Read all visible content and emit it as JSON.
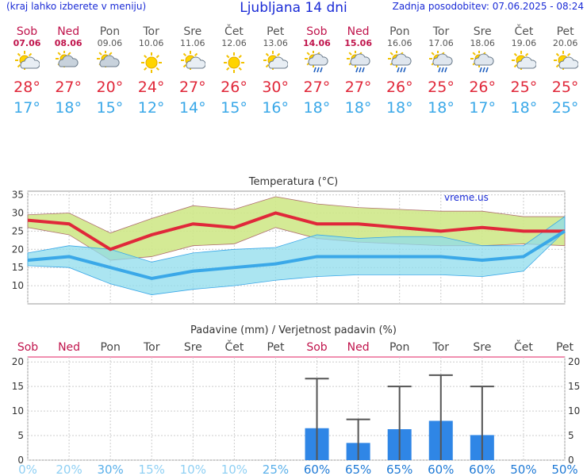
{
  "header": {
    "left_note": "(kraj lahko izberete v meniju)",
    "title": "Ljubljana 14 dni",
    "updated": "Zadnja posodobitev: 07.06.2025 - 08:24"
  },
  "days": [
    {
      "name": "Sob",
      "date": "07.06",
      "weekend": true,
      "icon": "sun-cloud-icon",
      "max": "28°",
      "min": "17°"
    },
    {
      "name": "Ned",
      "date": "08.06",
      "weekend": true,
      "icon": "cloudy-icon",
      "max": "27°",
      "min": "18°"
    },
    {
      "name": "Pon",
      "date": "09.06",
      "weekend": false,
      "icon": "cloudy-icon",
      "max": "20°",
      "min": "15°"
    },
    {
      "name": "Tor",
      "date": "10.06",
      "weekend": false,
      "icon": "sun-icon",
      "max": "24°",
      "min": "12°"
    },
    {
      "name": "Sre",
      "date": "11.06",
      "weekend": false,
      "icon": "sun-cloud-icon",
      "max": "27°",
      "min": "14°"
    },
    {
      "name": "Čet",
      "date": "12.06",
      "weekend": false,
      "icon": "sun-icon",
      "max": "26°",
      "min": "15°"
    },
    {
      "name": "Pet",
      "date": "13.06",
      "weekend": false,
      "icon": "sun-cloud-icon",
      "max": "30°",
      "min": "16°"
    },
    {
      "name": "Sob",
      "date": "14.06",
      "weekend": true,
      "icon": "sun-rain-icon",
      "max": "27°",
      "min": "18°"
    },
    {
      "name": "Ned",
      "date": "15.06",
      "weekend": true,
      "icon": "sun-rain-icon",
      "max": "27°",
      "min": "18°"
    },
    {
      "name": "Pon",
      "date": "16.06",
      "weekend": false,
      "icon": "sun-rain-icon",
      "max": "26°",
      "min": "18°"
    },
    {
      "name": "Tor",
      "date": "17.06",
      "weekend": false,
      "icon": "sun-rain-icon",
      "max": "25°",
      "min": "18°"
    },
    {
      "name": "Sre",
      "date": "18.06",
      "weekend": false,
      "icon": "sun-rain-icon",
      "max": "26°",
      "min": "17°"
    },
    {
      "name": "Čet",
      "date": "19.06",
      "weekend": false,
      "icon": "sun-cloud-icon",
      "max": "25°",
      "min": "18°"
    },
    {
      "name": "Pet",
      "date": "20.06",
      "weekend": false,
      "icon": "sun-cloud-icon",
      "max": "25°",
      "min": "25°"
    }
  ],
  "colors": {
    "max": "#e0283a",
    "min": "#3aa8e8",
    "max_band": "#cfe88a",
    "min_band": "#8fdcec",
    "precip": "#2f86e6",
    "weekend": "#c0144c"
  },
  "chart_data": [
    {
      "type": "line",
      "title": "Temperatura (°C)",
      "watermark": "vreme.us",
      "ylim": [
        5,
        36
      ],
      "yticks": [
        10,
        15,
        20,
        25,
        30,
        35
      ],
      "x": [
        "07.06",
        "08.06",
        "09.06",
        "10.06",
        "11.06",
        "12.06",
        "13.06",
        "14.06",
        "15.06",
        "16.06",
        "17.06",
        "18.06",
        "19.06",
        "20.06"
      ],
      "series": [
        {
          "role": "max",
          "values": [
            28,
            27,
            20,
            24,
            27,
            26,
            30,
            27,
            27,
            26,
            25,
            26,
            25,
            25
          ],
          "band_high": [
            29.5,
            30,
            24.5,
            28.5,
            32,
            31,
            34.5,
            32.5,
            31.5,
            31,
            30.5,
            30.5,
            29,
            29
          ],
          "band_low": [
            26,
            24,
            17,
            18,
            21,
            21.5,
            26,
            23,
            22,
            21.5,
            21,
            21,
            21.5,
            21
          ]
        },
        {
          "role": "min",
          "values": [
            17,
            18,
            15,
            12,
            14,
            15,
            16,
            18,
            18,
            18,
            18,
            17,
            18,
            25
          ],
          "band_high": [
            19,
            21,
            20,
            16.5,
            19,
            20,
            20.5,
            24,
            23,
            23.5,
            23.5,
            21,
            21,
            29
          ],
          "band_low": [
            15.5,
            15,
            10.5,
            7.5,
            9,
            10,
            11.5,
            12.5,
            13,
            13,
            13,
            12.5,
            14,
            25
          ]
        }
      ]
    },
    {
      "type": "bar",
      "title": "Padavine (mm) / Verjetnost padavin (%)",
      "ylim": [
        0,
        21
      ],
      "yticks": [
        0,
        5,
        10,
        15,
        20
      ],
      "categories": [
        "Sob",
        "Ned",
        "Pon",
        "Tor",
        "Sre",
        "Čet",
        "Pet",
        "Sob",
        "Ned",
        "Pon",
        "Tor",
        "Sre",
        "Čet",
        "Pet"
      ],
      "values": [
        0,
        0,
        0,
        0,
        0,
        0,
        0,
        6.5,
        3.5,
        6.3,
        8,
        5.1,
        0,
        0
      ],
      "error_high": [
        0,
        0,
        0,
        0,
        0,
        0,
        0,
        16.6,
        8.3,
        15,
        17.3,
        15,
        0,
        0
      ],
      "probability": [
        "0%",
        "20%",
        "30%",
        "15%",
        "10%",
        "10%",
        "25%",
        "60%",
        "65%",
        "65%",
        "60%",
        "60%",
        "50%",
        "50%"
      ]
    }
  ]
}
